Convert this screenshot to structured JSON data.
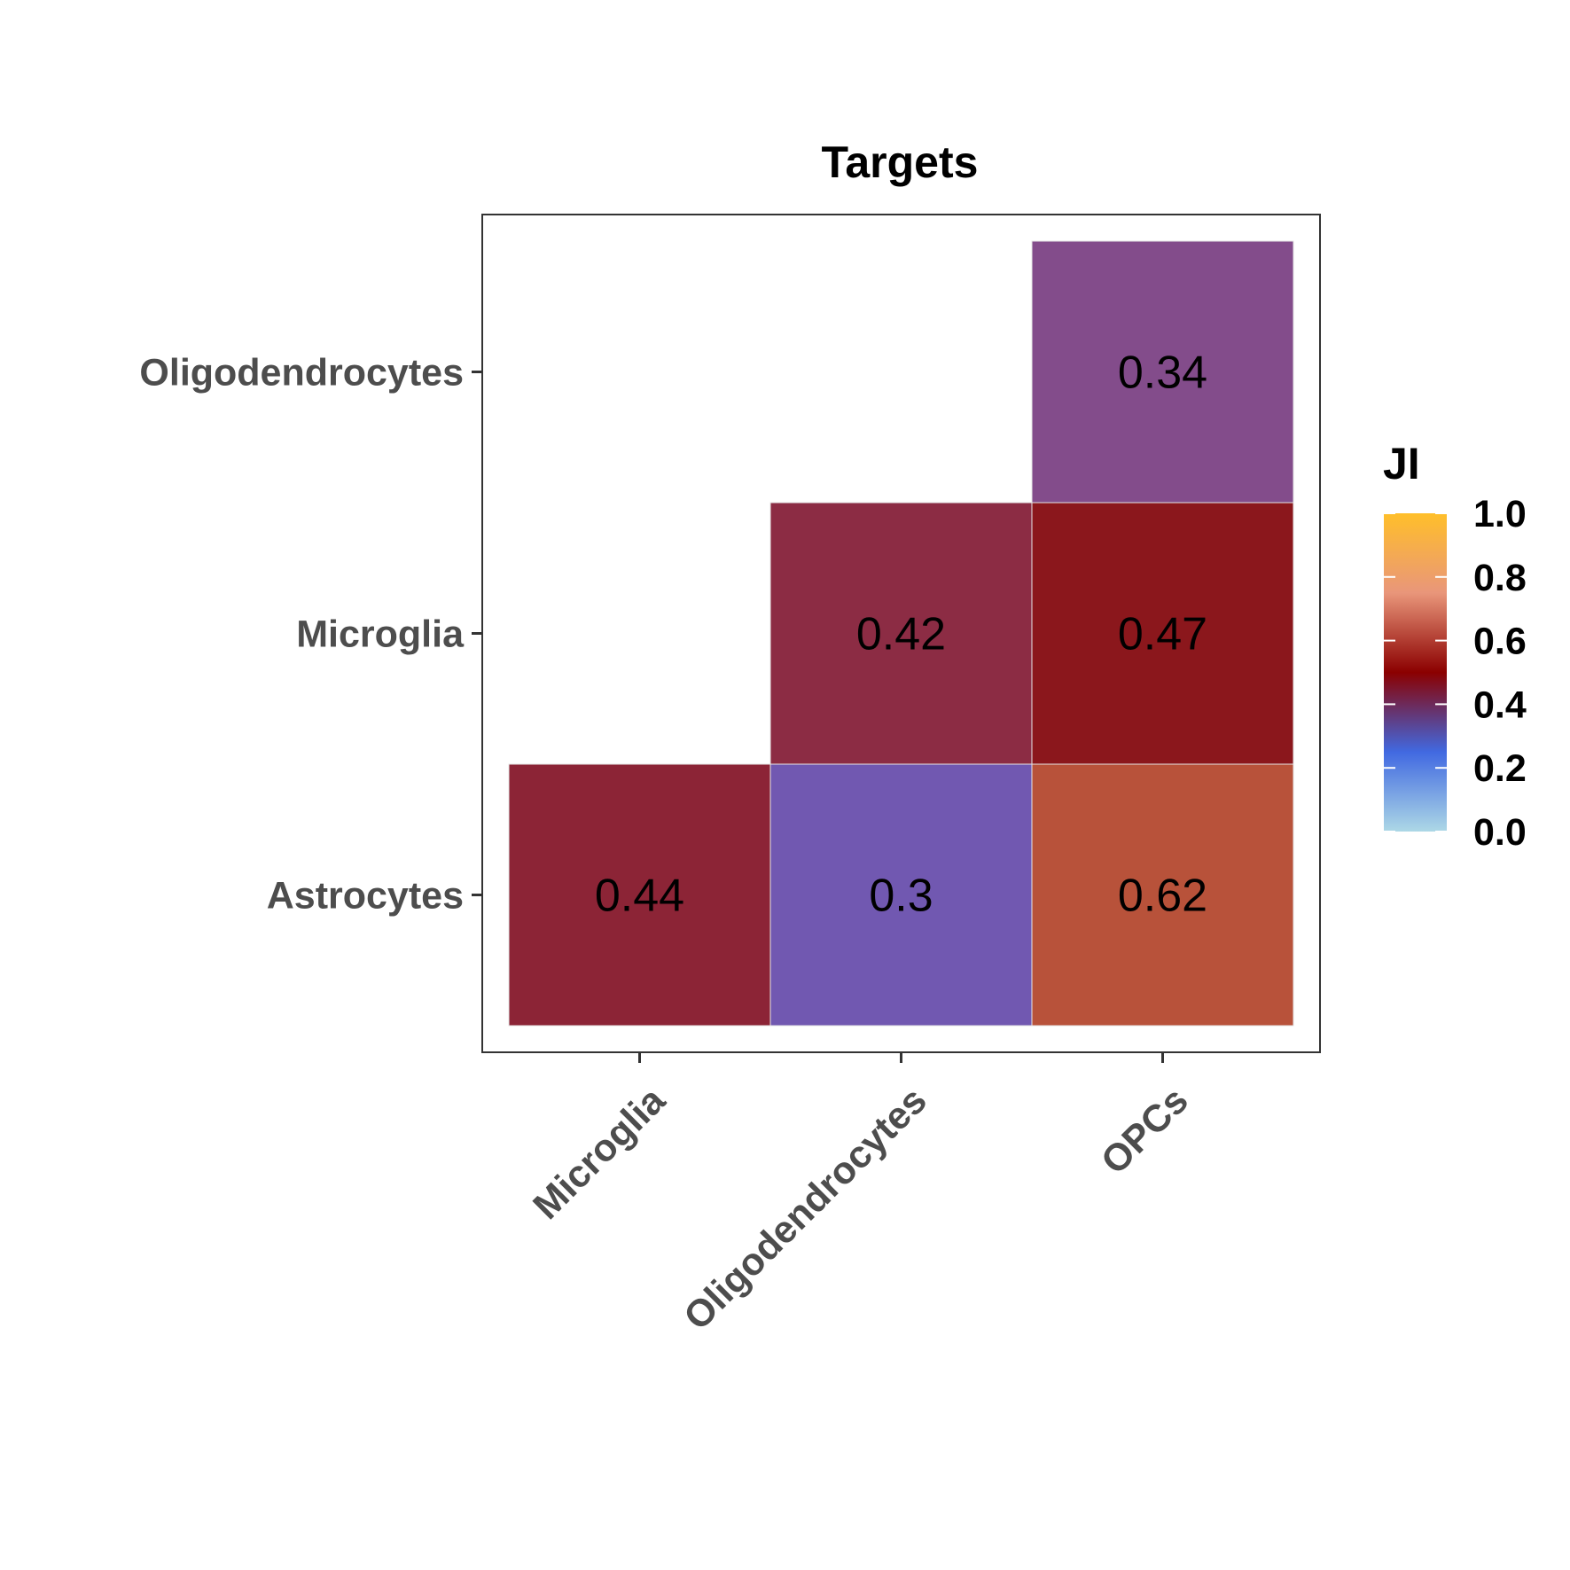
{
  "chart_data": {
    "type": "heatmap",
    "title": "Targets",
    "x_categories": [
      "Microglia",
      "Oligodendrocytes",
      "OPCs"
    ],
    "y_categories": [
      "Astrocytes",
      "Microglia",
      "Oligodendrocytes"
    ],
    "cells": [
      {
        "x": "Microglia",
        "y": "Astrocytes",
        "value": 0.44,
        "label": "0.44",
        "color": "#8c2436"
      },
      {
        "x": "Oligodendrocytes",
        "y": "Astrocytes",
        "value": 0.3,
        "label": "0.3",
        "color": "#7158b1"
      },
      {
        "x": "OPCs",
        "y": "Astrocytes",
        "value": 0.62,
        "label": "0.62",
        "color": "#b8523a"
      },
      {
        "x": "Oligodendrocytes",
        "y": "Microglia",
        "value": 0.42,
        "label": "0.42",
        "color": "#8c2c44"
      },
      {
        "x": "OPCs",
        "y": "Microglia",
        "value": 0.47,
        "label": "0.47",
        "color": "#8b171c"
      },
      {
        "x": "OPCs",
        "y": "Oligodendrocytes",
        "value": 0.34,
        "label": "0.34",
        "color": "#834c8b"
      }
    ],
    "legend": {
      "title": "JI",
      "position": "right",
      "range": [
        0,
        1
      ],
      "ticks": [
        "0.0",
        "0.2",
        "0.4",
        "0.6",
        "0.8",
        "1.0"
      ],
      "gradient_stops": [
        {
          "value": 0.0,
          "color": "#add8e6"
        },
        {
          "value": 0.25,
          "color": "#4169e1"
        },
        {
          "value": 0.5,
          "color": "#8b0000"
        },
        {
          "value": 0.75,
          "color": "#e9967a"
        },
        {
          "value": 1.0,
          "color": "#ffbf2a"
        }
      ]
    },
    "grid": false,
    "xlabel": "",
    "ylabel": ""
  }
}
